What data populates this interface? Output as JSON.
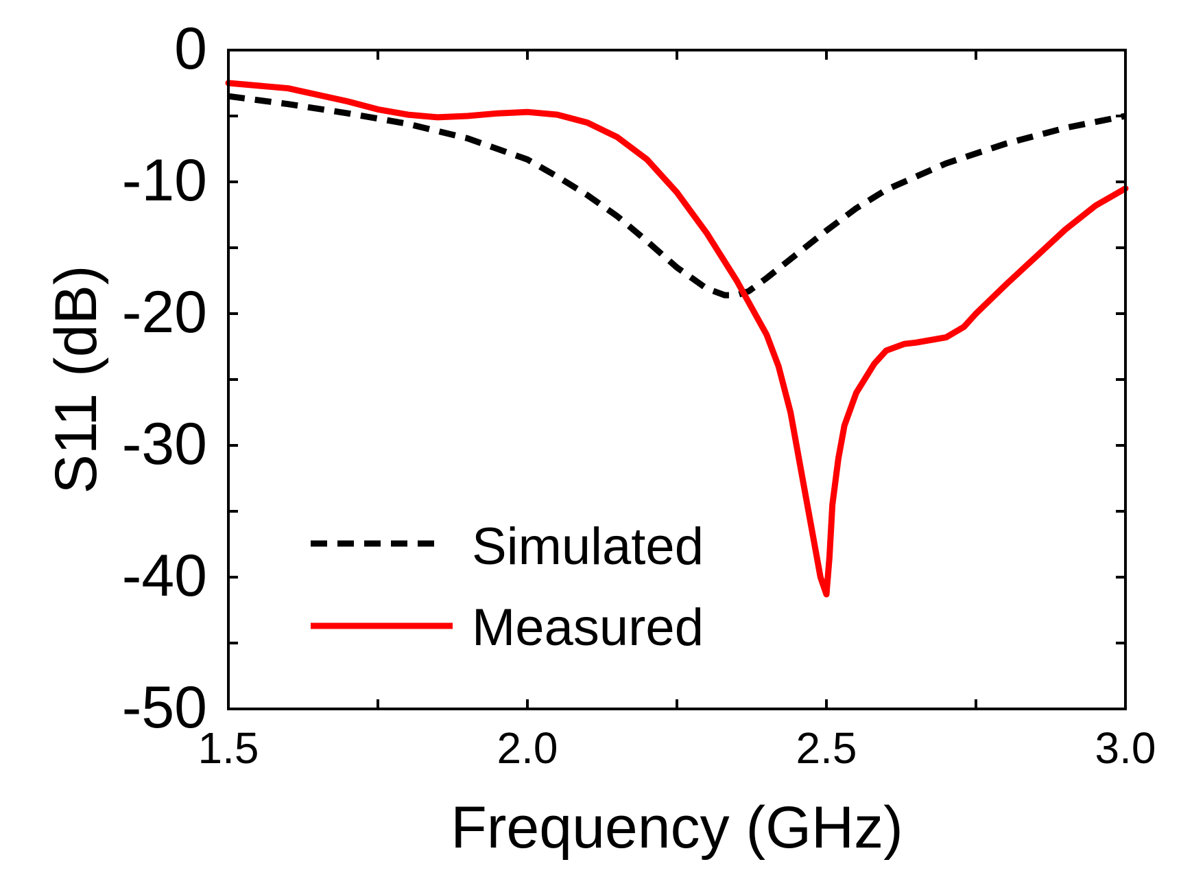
{
  "chart_data": {
    "type": "line",
    "title": "",
    "xlabel": "Frequency (GHz)",
    "ylabel": "S11 (dB)",
    "xlim": [
      1.5,
      3.0
    ],
    "ylim": [
      -50,
      0
    ],
    "x_ticks": [
      1.5,
      2.0,
      2.5,
      3.0
    ],
    "x_tick_labels": [
      "1.5",
      "2.0",
      "2.5",
      "3.0"
    ],
    "x_minor_ticks": [
      1.75,
      2.25,
      2.75
    ],
    "y_ticks": [
      0,
      -10,
      -20,
      -30,
      -40,
      -50
    ],
    "y_tick_labels": [
      "0",
      "-10",
      "-20",
      "-30",
      "-40",
      "-50"
    ],
    "y_minor_ticks": [
      -5,
      -15,
      -25,
      -35,
      -45
    ],
    "grid": false,
    "legend_position": "lower-left",
    "series": [
      {
        "name": "Simulated",
        "style": "dashed",
        "color": "#000000",
        "x": [
          1.5,
          1.6,
          1.7,
          1.8,
          1.9,
          2.0,
          2.05,
          2.1,
          2.15,
          2.2,
          2.25,
          2.3,
          2.33,
          2.35,
          2.37,
          2.4,
          2.45,
          2.5,
          2.55,
          2.6,
          2.7,
          2.8,
          2.9,
          3.0
        ],
        "y": [
          -3.5,
          -4.1,
          -4.8,
          -5.6,
          -6.7,
          -8.3,
          -9.6,
          -11.0,
          -12.6,
          -14.5,
          -16.5,
          -18.1,
          -18.6,
          -18.6,
          -18.3,
          -17.3,
          -15.5,
          -13.7,
          -12.0,
          -10.6,
          -8.6,
          -7.1,
          -5.9,
          -5.0
        ]
      },
      {
        "name": "Measured",
        "style": "solid",
        "color": "#ff0000",
        "x": [
          1.5,
          1.6,
          1.7,
          1.75,
          1.8,
          1.85,
          1.9,
          1.95,
          2.0,
          2.05,
          2.1,
          2.15,
          2.2,
          2.25,
          2.3,
          2.35,
          2.4,
          2.42,
          2.44,
          2.46,
          2.48,
          2.49,
          2.5,
          2.505,
          2.51,
          2.52,
          2.53,
          2.55,
          2.58,
          2.6,
          2.63,
          2.65,
          2.7,
          2.73,
          2.75,
          2.8,
          2.85,
          2.9,
          2.95,
          3.0
        ],
        "y": [
          -2.5,
          -2.9,
          -3.9,
          -4.5,
          -4.9,
          -5.1,
          -5.0,
          -4.8,
          -4.7,
          -4.9,
          -5.5,
          -6.6,
          -8.3,
          -10.8,
          -13.9,
          -17.5,
          -21.6,
          -24.0,
          -27.5,
          -32.5,
          -37.5,
          -40.0,
          -41.3,
          -38.5,
          -34.5,
          -31.0,
          -28.5,
          -26.0,
          -23.8,
          -22.8,
          -22.3,
          -22.2,
          -21.8,
          -21.0,
          -20.0,
          -17.8,
          -15.7,
          -13.6,
          -11.8,
          -10.5
        ]
      }
    ]
  }
}
